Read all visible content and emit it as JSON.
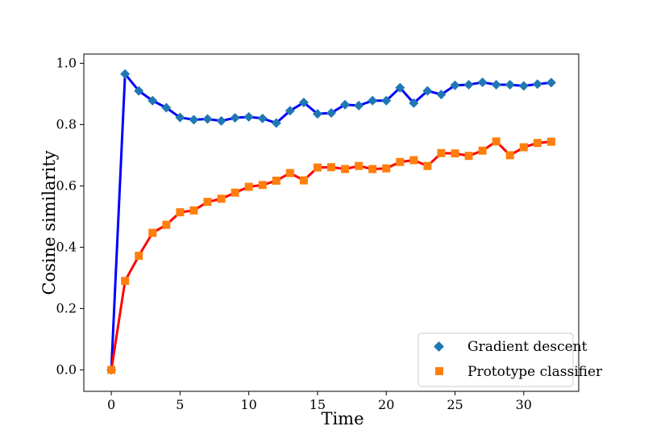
{
  "chart_data": {
    "type": "line",
    "title": "",
    "xlabel": "Time",
    "ylabel": "Cosine similarity",
    "xlim": [
      -2,
      34
    ],
    "ylim": [
      -0.07,
      1.03
    ],
    "xticks": [
      0,
      5,
      10,
      15,
      20,
      25,
      30
    ],
    "yticks": [
      0.0,
      0.2,
      0.4,
      0.6,
      0.8,
      1.0
    ],
    "xtick_labels": [
      "0",
      "5",
      "10",
      "15",
      "20",
      "25",
      "30"
    ],
    "ytick_labels": [
      "0.0",
      "0.2",
      "0.4",
      "0.6",
      "0.8",
      "1.0"
    ],
    "grid": false,
    "legend_position": "lower-right",
    "x": [
      0,
      1,
      2,
      3,
      4,
      5,
      6,
      7,
      8,
      9,
      10,
      11,
      12,
      13,
      14,
      15,
      16,
      17,
      18,
      19,
      20,
      21,
      22,
      23,
      24,
      25,
      26,
      27,
      28,
      29,
      30,
      31,
      32
    ],
    "series": [
      {
        "name": "Gradient descent",
        "line_color": "#0000ff",
        "marker": "diamond",
        "marker_color": "#1f77b4",
        "values": [
          0.0,
          0.965,
          0.91,
          0.878,
          0.855,
          0.823,
          0.816,
          0.818,
          0.812,
          0.822,
          0.825,
          0.82,
          0.805,
          0.845,
          0.872,
          0.835,
          0.838,
          0.865,
          0.862,
          0.878,
          0.878,
          0.92,
          0.87,
          0.91,
          0.898,
          0.928,
          0.93,
          0.938,
          0.93,
          0.93,
          0.926,
          0.932,
          0.937
        ]
      },
      {
        "name": "Prototype classifier",
        "line_color": "#ff0000",
        "marker": "square",
        "marker_color": "#ff7f0e",
        "values": [
          0.0,
          0.29,
          0.372,
          0.447,
          0.473,
          0.514,
          0.52,
          0.548,
          0.558,
          0.578,
          0.597,
          0.603,
          0.617,
          0.642,
          0.618,
          0.66,
          0.661,
          0.655,
          0.665,
          0.655,
          0.657,
          0.678,
          0.684,
          0.665,
          0.707,
          0.706,
          0.698,
          0.715,
          0.745,
          0.7,
          0.726,
          0.74,
          0.744
        ]
      }
    ]
  }
}
